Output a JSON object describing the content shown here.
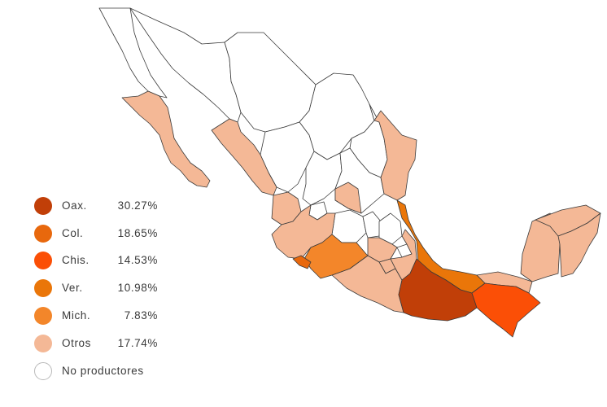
{
  "colors": {
    "oax": "#c13f08",
    "col": "#e8680d",
    "chis": "#fb4f06",
    "ver": "#ea7609",
    "mich": "#f3862a",
    "otros": "#f4b896",
    "none": "#ffffff"
  },
  "legend": [
    {
      "label": "Oax.",
      "value": "30.27%",
      "color": "#c13f08"
    },
    {
      "label": "Col.",
      "value": "18.65%",
      "color": "#e8680d"
    },
    {
      "label": "Chis.",
      "value": "14.53%",
      "color": "#fb4f06"
    },
    {
      "label": "Ver.",
      "value": "10.98%",
      "color": "#ea7609"
    },
    {
      "label": "Mich.",
      "value": "7.83%",
      "color": "#f3862a"
    },
    {
      "label": "Otros",
      "value": "17.74%",
      "color": "#f4b896"
    },
    {
      "label": "No productores",
      "value": "",
      "color": "#ffffff"
    }
  ]
}
